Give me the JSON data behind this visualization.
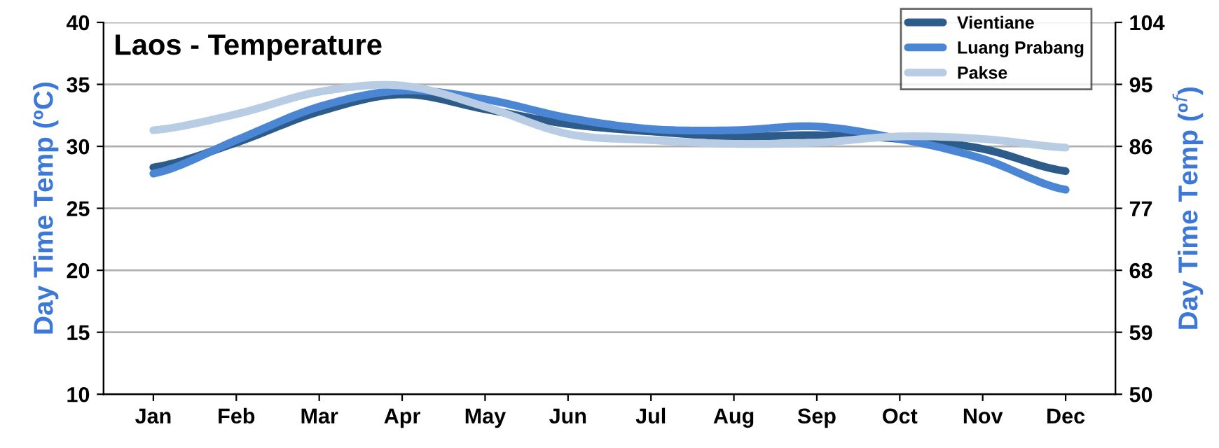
{
  "chart_data": {
    "type": "line",
    "title": "Laos - Temperature",
    "ylabel": "Day Time Temp (ºC)",
    "y2label": "Day Time Temp (º$^{f}$)",
    "categories": [
      "Jan",
      "Feb",
      "Mar",
      "Apr",
      "May",
      "Jun",
      "Jul",
      "Aug",
      "Sep",
      "Oct",
      "Nov",
      "Dec"
    ],
    "series": [
      {
        "name": "Vientiane",
        "color": "#2e5c8a",
        "values": [
          28.3,
          30.3,
          32.8,
          34.2,
          33.0,
          31.8,
          31.2,
          30.8,
          30.9,
          30.6,
          29.8,
          28.0
        ]
      },
      {
        "name": "Luang Prabang",
        "color": "#4a86d4",
        "values": [
          27.8,
          30.5,
          33.2,
          34.5,
          33.8,
          32.3,
          31.4,
          31.3,
          31.6,
          30.6,
          29.0,
          26.5
        ]
      },
      {
        "name": "Pakse",
        "color": "#b8cce4",
        "values": [
          31.3,
          32.6,
          34.4,
          34.9,
          33.2,
          31.0,
          30.5,
          30.2,
          30.3,
          30.8,
          30.6,
          29.9
        ]
      }
    ],
    "ylim": [
      10,
      40
    ],
    "yticks": [
      10,
      15,
      20,
      25,
      30,
      35,
      40
    ],
    "y2lim": [
      50,
      104
    ],
    "y2ticks": [
      50,
      59,
      68,
      77,
      86,
      95,
      104
    ],
    "grid": "y",
    "legend": "top right",
    "marker": "none",
    "line_style": "solid"
  }
}
